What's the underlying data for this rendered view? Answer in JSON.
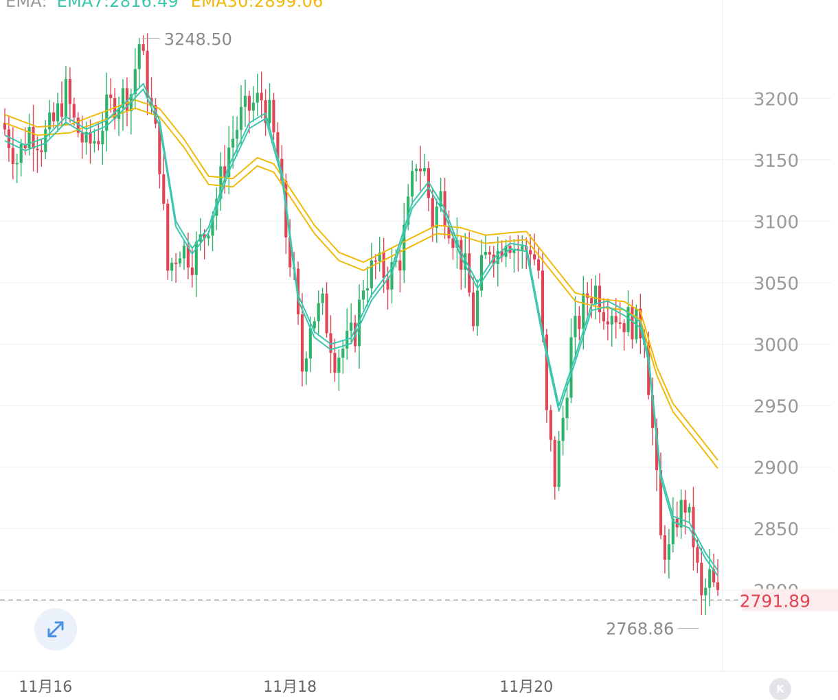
{
  "legend": {
    "label": "EMA:",
    "ema7": "EMA7:2816.49",
    "ema30": "EMA30:2899.06"
  },
  "colors": {
    "up": "#2fb36a",
    "down": "#e04555",
    "ema7": "#3cc6ad",
    "ema30": "#f0b90b",
    "grid": "#eeeeee",
    "axis_text": "#9a9a9a",
    "last_price": "#e04555"
  },
  "icons": {
    "expand": "expand-arrows-icon",
    "kline": "kline-k-icon"
  },
  "kline_button_label": "K",
  "chart_data": {
    "type": "candlestick",
    "title": "",
    "y_axis": {
      "position": "right",
      "ticks": [
        2800,
        2850,
        2900,
        2950,
        3000,
        3050,
        3100,
        3150,
        3200
      ],
      "range": [
        2735,
        3280
      ]
    },
    "x_axis": {
      "ticks": [
        {
          "label": "11月16",
          "index": 10
        },
        {
          "label": "11月18",
          "index": 70
        },
        {
          "label": "11月20",
          "index": 128
        }
      ],
      "count": 176
    },
    "grid": true,
    "high_annotation": {
      "label": "3248.50",
      "value": 3248.5,
      "index": 33
    },
    "low_annotation": {
      "label": "2768.86",
      "value": 2768.86,
      "index": 171
    },
    "last_price": {
      "label": "2791.89",
      "value": 2791.89
    },
    "series": [
      {
        "name": "EMA7",
        "value_label": "2816.49"
      },
      {
        "name": "EMA30",
        "value_label": "2899.06"
      }
    ],
    "close_path": [
      [
        0,
        3175
      ],
      [
        3,
        3150
      ],
      [
        6,
        3175
      ],
      [
        9,
        3165
      ],
      [
        12,
        3180
      ],
      [
        15,
        3205
      ],
      [
        17,
        3180
      ],
      [
        20,
        3160
      ],
      [
        23,
        3170
      ],
      [
        25,
        3190
      ],
      [
        28,
        3200
      ],
      [
        31,
        3205
      ],
      [
        33,
        3245
      ],
      [
        35,
        3210
      ],
      [
        38,
        3150
      ],
      [
        40,
        3060
      ],
      [
        43,
        3080
      ],
      [
        46,
        3070
      ],
      [
        49,
        3090
      ],
      [
        52,
        3120
      ],
      [
        55,
        3160
      ],
      [
        58,
        3185
      ],
      [
        61,
        3195
      ],
      [
        63,
        3200
      ],
      [
        65,
        3185
      ],
      [
        67,
        3150
      ],
      [
        69,
        3090
      ],
      [
        71,
        3050
      ],
      [
        73,
        2980
      ],
      [
        75,
        3020
      ],
      [
        78,
        3030
      ],
      [
        81,
        2990
      ],
      [
        84,
        3000
      ],
      [
        86,
        3010
      ],
      [
        88,
        3050
      ],
      [
        91,
        3065
      ],
      [
        94,
        3055
      ],
      [
        97,
        3070
      ],
      [
        99,
        3110
      ],
      [
        101,
        3150
      ],
      [
        103,
        3140
      ],
      [
        105,
        3100
      ],
      [
        107,
        3120
      ],
      [
        109,
        3100
      ],
      [
        111,
        3080
      ],
      [
        113,
        3060
      ],
      [
        115,
        3020
      ],
      [
        117,
        3060
      ],
      [
        119,
        3080
      ],
      [
        121,
        3075
      ],
      [
        123,
        3090
      ],
      [
        125,
        3080
      ],
      [
        127,
        3075
      ],
      [
        129,
        3080
      ],
      [
        131,
        3060
      ],
      [
        133,
        2940
      ],
      [
        135,
        2890
      ],
      [
        137,
        2940
      ],
      [
        139,
        3000
      ],
      [
        141,
        3020
      ],
      [
        143,
        3040
      ],
      [
        145,
        3045
      ],
      [
        147,
        3030
      ],
      [
        149,
        3030
      ],
      [
        151,
        3020
      ],
      [
        153,
        3020
      ],
      [
        155,
        3015
      ],
      [
        157,
        3010
      ],
      [
        159,
        2930
      ],
      [
        161,
        2840
      ],
      [
        163,
        2830
      ],
      [
        165,
        2860
      ],
      [
        167,
        2870
      ],
      [
        169,
        2840
      ],
      [
        171,
        2790
      ],
      [
        173,
        2810
      ],
      [
        175,
        2792
      ]
    ],
    "ema7_path": [
      [
        0,
        3170
      ],
      [
        5,
        3162
      ],
      [
        10,
        3168
      ],
      [
        15,
        3185
      ],
      [
        20,
        3175
      ],
      [
        25,
        3182
      ],
      [
        30,
        3198
      ],
      [
        34,
        3212
      ],
      [
        38,
        3182
      ],
      [
        42,
        3100
      ],
      [
        46,
        3078
      ],
      [
        50,
        3095
      ],
      [
        55,
        3145
      ],
      [
        60,
        3180
      ],
      [
        64,
        3188
      ],
      [
        68,
        3140
      ],
      [
        72,
        3040
      ],
      [
        76,
        3010
      ],
      [
        80,
        3000
      ],
      [
        85,
        3005
      ],
      [
        90,
        3040
      ],
      [
        95,
        3062
      ],
      [
        100,
        3115
      ],
      [
        104,
        3132
      ],
      [
        108,
        3110
      ],
      [
        112,
        3075
      ],
      [
        116,
        3050
      ],
      [
        120,
        3070
      ],
      [
        124,
        3082
      ],
      [
        128,
        3080
      ],
      [
        132,
        3010
      ],
      [
        136,
        2950
      ],
      [
        140,
        2990
      ],
      [
        144,
        3032
      ],
      [
        148,
        3035
      ],
      [
        152,
        3028
      ],
      [
        156,
        3018
      ],
      [
        158,
        2990
      ],
      [
        161,
        2895
      ],
      [
        164,
        2860
      ],
      [
        168,
        2855
      ],
      [
        172,
        2830
      ],
      [
        175,
        2816
      ]
    ],
    "ema30_path": [
      [
        0,
        3180
      ],
      [
        8,
        3170
      ],
      [
        16,
        3172
      ],
      [
        24,
        3182
      ],
      [
        32,
        3192
      ],
      [
        38,
        3185
      ],
      [
        44,
        3160
      ],
      [
        50,
        3130
      ],
      [
        56,
        3128
      ],
      [
        62,
        3145
      ],
      [
        66,
        3140
      ],
      [
        70,
        3120
      ],
      [
        76,
        3090
      ],
      [
        82,
        3068
      ],
      [
        88,
        3060
      ],
      [
        94,
        3070
      ],
      [
        100,
        3080
      ],
      [
        106,
        3090
      ],
      [
        112,
        3088
      ],
      [
        118,
        3082
      ],
      [
        124,
        3084
      ],
      [
        128,
        3085
      ],
      [
        134,
        3060
      ],
      [
        140,
        3035
      ],
      [
        146,
        3030
      ],
      [
        152,
        3028
      ],
      [
        156,
        3020
      ],
      [
        160,
        2975
      ],
      [
        164,
        2945
      ],
      [
        170,
        2920
      ],
      [
        175,
        2899
      ]
    ]
  }
}
